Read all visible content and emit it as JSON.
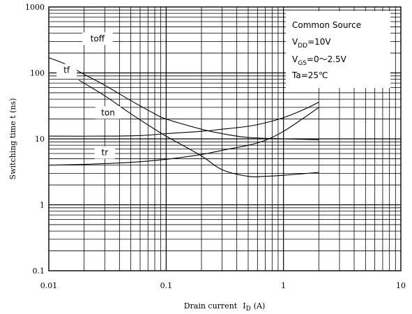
{
  "chart_data": {
    "type": "line",
    "xlabel": "Drain current",
    "xlabel_symbol": "I",
    "xlabel_sub": "D",
    "xlabel_unit": "(A)",
    "ylabel": "Switching time  t (ns)",
    "xscale": "log",
    "yscale": "log",
    "xlim": [
      0.01,
      10
    ],
    "ylim": [
      0.1,
      1000
    ],
    "grid": true,
    "x_ticks": [
      "0.01",
      "0.1",
      "1",
      "10"
    ],
    "y_ticks": [
      "0.1",
      "1",
      "10",
      "100",
      "1000"
    ],
    "conditions": {
      "line1": "Common Source",
      "line2_main": "V",
      "line2_sub": "DD",
      "line2_rest": "=10V",
      "line3_main": "V",
      "line3_sub": "GS",
      "line3_rest": "=0～2.5V",
      "line4": "Ta=25℃"
    },
    "series": [
      {
        "name": "toff",
        "x": [
          0.01,
          0.014,
          0.02,
          0.03,
          0.05,
          0.08,
          0.1,
          0.2,
          0.3,
          0.5,
          1,
          2
        ],
        "y": [
          170,
          135,
          95,
          65,
          38,
          24,
          20,
          14,
          12,
          10.5,
          10,
          9.7
        ]
      },
      {
        "name": "tf",
        "x": [
          0.018,
          0.03,
          0.05,
          0.08,
          0.1,
          0.2,
          0.3,
          0.5,
          0.7,
          1,
          2
        ],
        "y": [
          78,
          45,
          24,
          14,
          11,
          5.5,
          3.4,
          2.7,
          2.7,
          2.8,
          3.1
        ]
      },
      {
        "name": "ton",
        "x": [
          0.01,
          0.03,
          0.06,
          0.1,
          0.2,
          0.3,
          0.5,
          0.7,
          1,
          1.5,
          2
        ],
        "y": [
          11,
          11,
          11.2,
          12,
          13,
          14,
          15.5,
          17.5,
          21,
          28,
          36
        ]
      },
      {
        "name": "tr",
        "x": [
          0.01,
          0.02,
          0.05,
          0.1,
          0.2,
          0.3,
          0.5,
          0.7,
          1,
          1.5,
          2
        ],
        "y": [
          4,
          4.1,
          4.4,
          4.9,
          5.8,
          6.7,
          8,
          9.5,
          13,
          21,
          30
        ]
      }
    ],
    "labels": {
      "toff": {
        "text": "toff",
        "x": 0.026,
        "y": 330
      },
      "tf": {
        "text": "tf",
        "x": 0.0142,
        "y": 110
      },
      "ton": {
        "text": "ton",
        "x": 0.032,
        "y": 25
      },
      "tr": {
        "text": "tr",
        "x": 0.03,
        "y": 6.2
      }
    }
  }
}
